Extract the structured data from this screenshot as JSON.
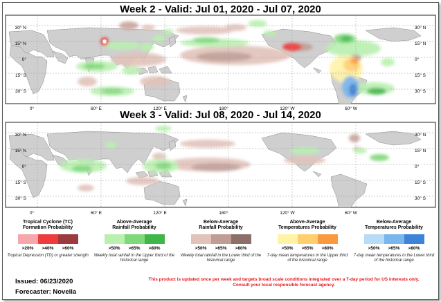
{
  "titles": {
    "week2": "Week 2 - Valid: Jul 01, 2020 - Jul 07, 2020",
    "week3": "Week 3 - Valid: Jul 08, 2020 - Jul 14, 2020"
  },
  "lat_labels": {
    "n30": "30° N",
    "n15": "15° N",
    "eq": "0°",
    "s15": "15° S",
    "s30": "30° S"
  },
  "lon_labels": {
    "l0": "0°",
    "l60": "60° E",
    "l120": "120° E",
    "l180": "180°",
    "l120w": "120° W",
    "l60w": "60° W"
  },
  "legend": [
    {
      "title_line1": "Tropical Cyclone (TC)",
      "title_line2": "Formation Probability",
      "colors": [
        "#f7a7a9",
        "#ee3b3b",
        "#9b3a3f"
      ],
      "labels": [
        ">20%",
        ">40%",
        ">60%"
      ],
      "note": "Tropical Depression (TD) or greater strength"
    },
    {
      "title_line1": "Above-Average",
      "title_line2": "Rainfall Probability",
      "colors": [
        "#b9f0b0",
        "#7fd87a",
        "#3fb64a"
      ],
      "labels": [
        ">50%",
        ">65%",
        ">80%"
      ],
      "note": "Weekly total rainfall in the Upper third of the historical range"
    },
    {
      "title_line1": "Below-Average",
      "title_line2": "Rainfall Probability",
      "colors": [
        "#e1c3bb",
        "#bf9d95",
        "#8c6f69"
      ],
      "labels": [
        ">50%",
        ">65%",
        ">80%"
      ],
      "note": "Weekly total rainfall in the Lower third of the historical range"
    },
    {
      "title_line1": "Above-Average",
      "title_line2": "Temperatures Probability",
      "colors": [
        "#fff3a8",
        "#ffce6e",
        "#fb9a3c"
      ],
      "labels": [
        ">50%",
        ">65%",
        ">80%"
      ],
      "note": "7-day mean temperatures in the Upper third of the historical range"
    },
    {
      "title_line1": "Below-Average",
      "title_line2": "Temperatures Probability",
      "colors": [
        "#b6dcf7",
        "#7ab6ee",
        "#3d83d8"
      ],
      "labels": [
        ">50%",
        ">65%",
        ">80%"
      ],
      "note": "7-day mean temperatures in the Lower third of the historical range"
    }
  ],
  "issued": "Issued: 06/23/2020",
  "forecaster": "Forecaster: Novella",
  "disclaimer_line1": "This product is updated once per week and targets broad scale conditions integrated over a 7-day period for US interests only.",
  "disclaimer_line2": "Consult your local responsible forecast agency."
}
